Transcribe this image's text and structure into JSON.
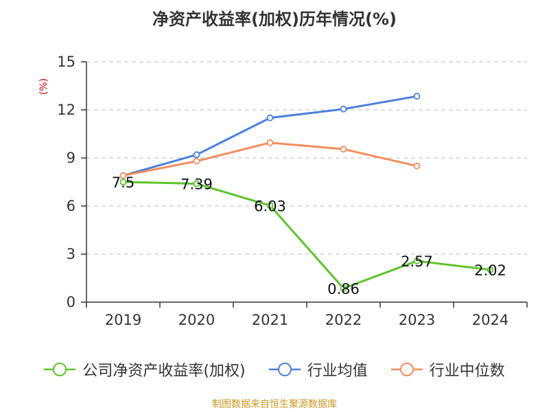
{
  "title": "净资产收益率(加权)历年情况(%)",
  "source": "制图数据来自恒生聚源数据库",
  "colors": {
    "company": "#5cc42a",
    "industry_avg": "#4a7fdc",
    "industry_median": "#f58c5a",
    "grid": "#bbbbbb",
    "axis": "#333333"
  },
  "chart_data": {
    "type": "line",
    "title": "净资产收益率(加权)历年情况(%)",
    "ylabel": "(%)",
    "xlabel": "",
    "categories": [
      "2019",
      "2020",
      "2021",
      "2022",
      "2023",
      "2024"
    ],
    "ylim": [
      0,
      15
    ],
    "yticks": [
      0,
      3,
      6,
      9,
      12,
      15
    ],
    "grid": true,
    "legend_position": "bottom",
    "series": [
      {
        "key": "company",
        "name": "公司净资产收益率(加权)",
        "values": [
          7.5,
          7.39,
          6.03,
          0.86,
          2.57,
          2.02
        ],
        "labels": [
          "7.5",
          "7.39",
          "6.03",
          "0.86",
          "2.57",
          "2.02"
        ],
        "show_labels": true
      },
      {
        "key": "industry_avg",
        "name": "行业均值",
        "values": [
          7.9,
          9.2,
          11.5,
          12.05,
          12.85,
          null
        ],
        "show_labels": false
      },
      {
        "key": "industry_median",
        "name": "行业中位数",
        "values": [
          7.9,
          8.8,
          9.95,
          9.55,
          8.5,
          null
        ],
        "show_labels": false
      }
    ]
  }
}
